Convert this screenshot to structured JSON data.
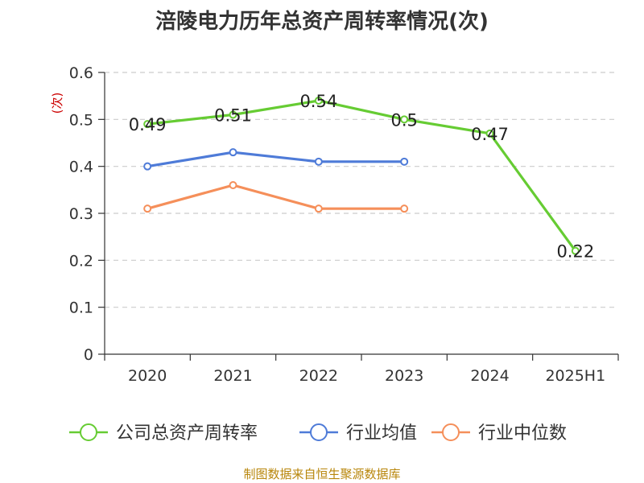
{
  "chart_data": {
    "type": "line",
    "title": "涪陵电力历年总资产周转率情况(次)",
    "ylabel": "(次)",
    "categories": [
      "2020",
      "2021",
      "2022",
      "2023",
      "2024",
      "2025H1"
    ],
    "ylim": [
      0,
      0.6
    ],
    "yticks": [
      "0",
      "0.1",
      "0.2",
      "0.3",
      "0.4",
      "0.5",
      "0.6"
    ],
    "grid": true,
    "legend_position": "bottom",
    "series": [
      {
        "name": "公司总资产周转率",
        "color": "#66cc33",
        "values": [
          0.49,
          0.51,
          0.54,
          0.5,
          0.47,
          0.22
        ],
        "labels": [
          "0.49",
          "0.51",
          "0.54",
          "0.5",
          "0.47",
          "0.22"
        ]
      },
      {
        "name": "行业均值",
        "color": "#4e7bd8",
        "values": [
          0.4,
          0.43,
          0.41,
          0.41,
          null,
          null
        ]
      },
      {
        "name": "行业中位数",
        "color": "#f58f5a",
        "values": [
          0.31,
          0.36,
          0.31,
          0.31,
          null,
          null
        ]
      }
    ]
  },
  "source": "制图数据来自恒生聚源数据库",
  "colors": {
    "axis": "#333333",
    "grid": "#cccccc",
    "ylabel": "#cc0000",
    "source": "#b8860b"
  }
}
